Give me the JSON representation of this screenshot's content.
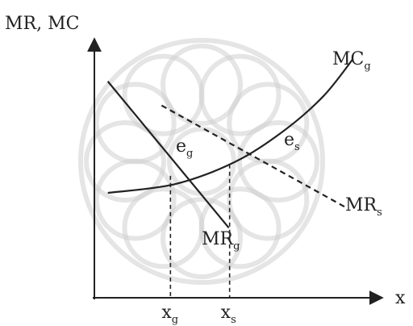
{
  "chart_data": {
    "type": "line",
    "ylabel": "MR, MC",
    "xlabel": "x",
    "grid": false,
    "legend": "none",
    "watermark": "ornamental-rosette",
    "colors": {
      "ink": "#222222",
      "watermark": "#cfcfcf"
    },
    "series": [
      {
        "key": "mc",
        "label_main": "MC",
        "label_sub": "g",
        "style": "solid",
        "points": [
          [
            0.5,
            4.8
          ],
          [
            3,
            5.2
          ],
          [
            5.2,
            6.2
          ],
          [
            7,
            7.6
          ],
          [
            8.5,
            9.2
          ],
          [
            9.6,
            10.9
          ]
        ]
      },
      {
        "key": "mrg",
        "label_main": "MR",
        "label_sub": "g",
        "style": "solid",
        "points": [
          [
            0.5,
            9.9
          ],
          [
            5,
            3.2
          ]
        ]
      },
      {
        "key": "mrs",
        "label_main": "MR",
        "label_sub": "s",
        "style": "dashed",
        "points": [
          [
            2.5,
            8.8
          ],
          [
            9.4,
            4.1
          ]
        ]
      }
    ],
    "equilibria": [
      {
        "key": "eg",
        "label_main": "e",
        "label_sub": "g",
        "x": 2.83,
        "y": 5.58,
        "xtick_main": "x",
        "xtick_sub": "g"
      },
      {
        "key": "es",
        "label_main": "e",
        "label_sub": "s",
        "x": 5.03,
        "y": 6.1,
        "xtick_main": "x",
        "xtick_sub": "s"
      }
    ],
    "xlim": [
      0,
      10.5
    ],
    "ylim": [
      0,
      12
    ]
  }
}
